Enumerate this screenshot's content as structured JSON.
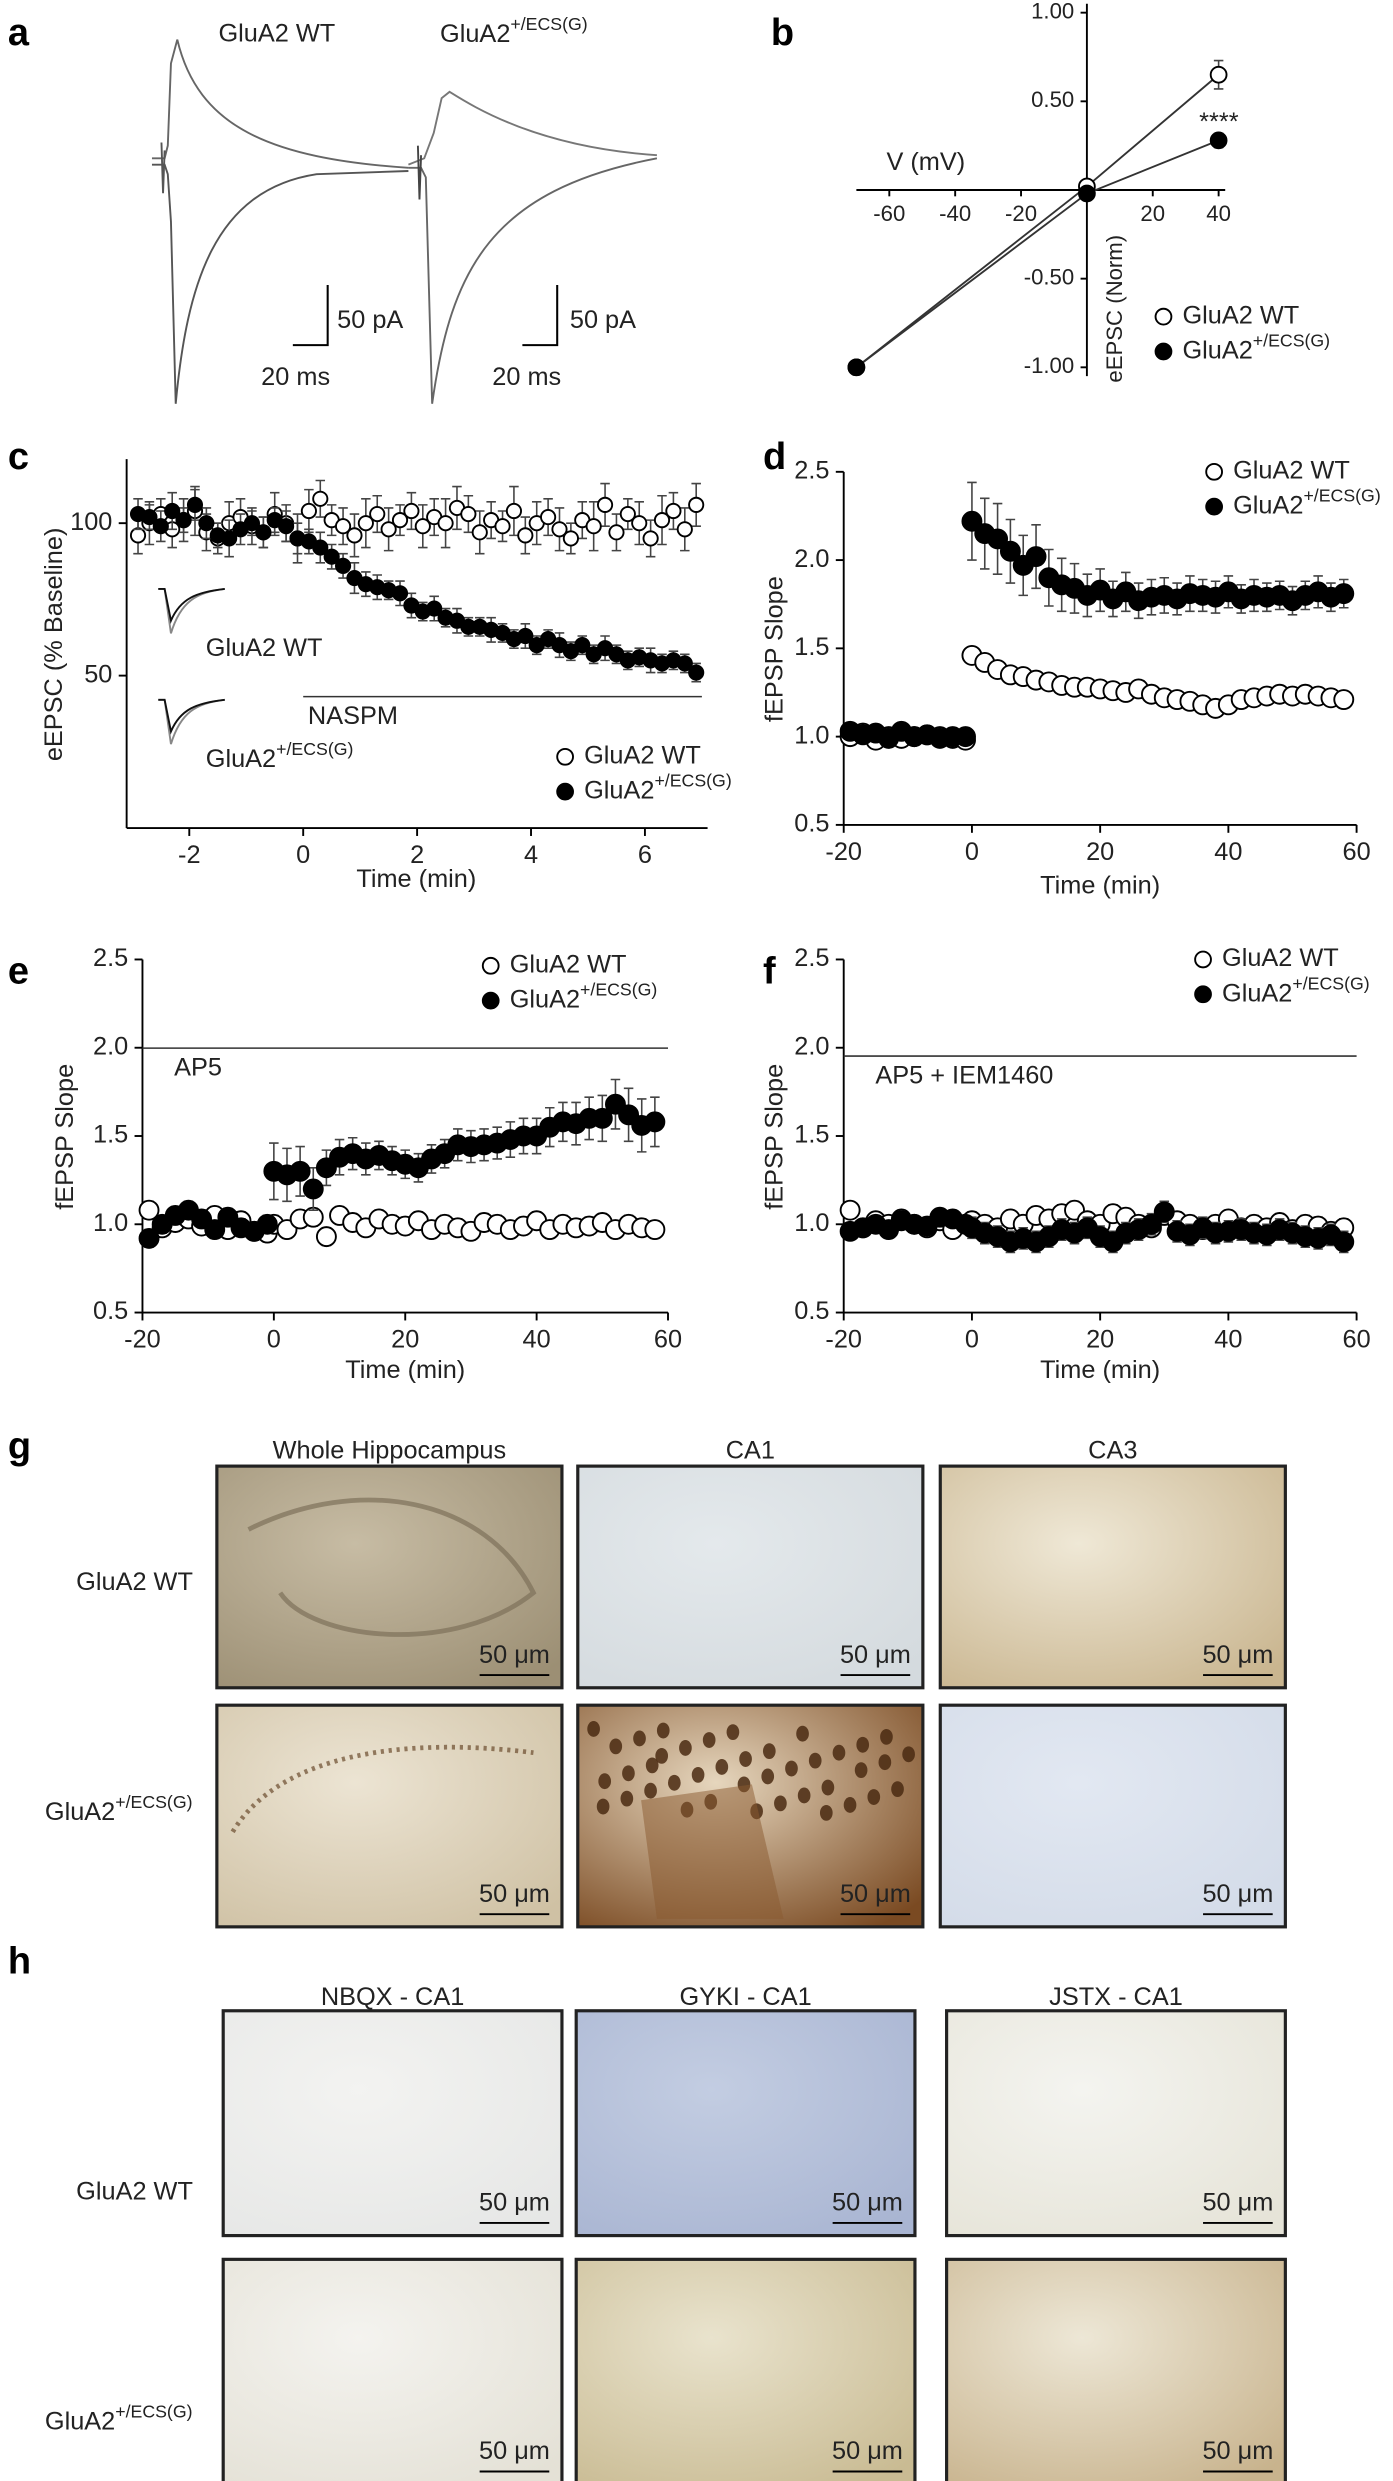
{
  "chart_data": [
    {
      "type": "trace",
      "panel": "a",
      "labels": [
        "GluA2 WT",
        "GluA2+/ECS(G)"
      ],
      "scale_bars": [
        "50 pA",
        "20 ms"
      ]
    },
    {
      "type": "scatter",
      "panel": "b",
      "xlabel": "V (mV)",
      "ylabel": "eEPSC (Norm)",
      "axes_cross": true,
      "x": [
        -70,
        0,
        40
      ],
      "xlim": [
        -70,
        42
      ],
      "ylim": [
        -1.05,
        1.05
      ],
      "xticks": [
        -60,
        -40,
        -20,
        20,
        40
      ],
      "yticks": [
        {
          "value": -1,
          "label": "-1.00"
        },
        {
          "value": -0.5,
          "label": "-0.50"
        },
        {
          "value": 0.5,
          "label": "0.50"
        },
        {
          "value": 1,
          "label": "1.00"
        }
      ],
      "legend": "lower right",
      "annotations": [
        "****"
      ],
      "series": [
        {
          "name": "GluA2 WT",
          "color": "#ffffff",
          "line": true,
          "values": [
            -1,
            0.02,
            0.65
          ],
          "errors": [
            null,
            null,
            0.08
          ]
        },
        {
          "name": "GluA2+/ECS(G)",
          "color": "#000000",
          "line": true,
          "values": [
            -1,
            -0.02,
            0.28
          ],
          "errors": [
            null,
            0.02,
            0.04
          ]
        }
      ]
    },
    {
      "type": "scatter",
      "panel": "c",
      "xlabel": "Time (min)",
      "ylabel": "eEPSC (% Baseline)",
      "xlim": [
        -3.1,
        7.1
      ],
      "ylim": [
        0,
        121
      ],
      "xticks": [
        -2,
        0,
        2,
        4,
        6
      ],
      "yticks": [
        50,
        100
      ],
      "legend": "lower right",
      "annotations": [
        "GluA2 WT",
        "GluA2+/ECS(G)"
      ],
      "drug_bar": {
        "label": "NASPM",
        "x": [
          0,
          7
        ]
      },
      "x": [
        -2.9,
        -2.7,
        -2.5,
        -2.3,
        -2.1,
        -1.9,
        -1.7,
        -1.5,
        -1.3,
        -1.1,
        -0.9,
        -0.7,
        -0.5,
        -0.3,
        -0.1,
        0.1,
        0.3,
        0.5,
        0.7,
        0.9,
        1.1,
        1.3,
        1.5,
        1.7,
        1.9,
        2.1,
        2.3,
        2.5,
        2.7,
        2.9,
        3.1,
        3.3,
        3.5,
        3.7,
        3.9,
        4.1,
        4.3,
        4.5,
        4.7,
        4.9,
        5.1,
        5.3,
        5.5,
        5.7,
        5.9,
        6.1,
        6.3,
        6.5,
        6.7,
        6.9
      ],
      "series": [
        {
          "name": "GluA2 WT",
          "color": "#ffffff",
          "values": [
            96,
            100,
            103,
            98,
            101,
            104,
            97,
            95,
            100,
            102,
            99,
            97,
            103,
            100,
            95,
            104,
            108,
            101,
            99,
            96,
            100,
            103,
            98,
            101,
            104,
            99,
            102,
            100,
            105,
            103,
            97,
            101,
            99,
            104,
            96,
            100,
            102,
            98,
            95,
            101,
            99,
            106,
            97,
            103,
            100,
            95,
            101,
            104,
            98,
            106
          ],
          "errors": [
            6,
            7,
            5,
            6,
            7,
            8,
            6,
            5,
            7,
            6,
            6,
            5,
            7,
            6,
            8,
            7,
            6,
            5,
            6,
            7,
            8,
            6,
            7,
            5,
            6,
            7,
            6,
            8,
            7,
            6,
            7,
            6,
            5,
            8,
            6,
            7,
            6,
            7,
            5,
            6,
            8,
            7,
            6,
            5,
            7,
            6,
            8,
            6,
            7,
            7
          ]
        },
        {
          "name": "GluA2+/ECS(G)",
          "color": "#000000",
          "values": [
            103,
            102,
            99,
            104,
            101,
            106,
            100,
            96,
            95,
            98,
            100,
            97,
            101,
            99,
            95,
            94,
            92,
            89,
            86,
            82,
            80,
            79,
            78,
            77,
            73,
            71,
            72,
            69,
            68,
            66,
            66,
            65,
            64,
            62,
            63,
            60,
            62,
            60,
            58,
            60,
            57,
            59,
            57,
            55,
            56,
            55,
            54,
            55,
            54,
            51
          ],
          "errors": [
            5,
            4,
            5,
            6,
            4,
            5,
            5,
            4,
            6,
            5,
            4,
            5,
            4,
            5,
            5,
            4,
            5,
            4,
            4,
            5,
            4,
            4,
            3,
            4,
            4,
            3,
            4,
            3,
            4,
            3,
            3,
            4,
            3,
            3,
            4,
            3,
            3,
            4,
            3,
            3,
            3,
            4,
            3,
            3,
            3,
            4,
            3,
            3,
            3,
            3
          ]
        }
      ]
    },
    {
      "type": "scatter",
      "panel": "d",
      "xlabel": "Time (min)",
      "ylabel": "fEPSP Slope",
      "xlim": [
        -20,
        60
      ],
      "ylim": [
        0.5,
        2.5
      ],
      "xticks": [
        -20,
        0,
        20,
        40,
        60
      ],
      "yticks": [
        0.5,
        {
          "value": 1,
          "label": "1.0"
        },
        1.5,
        {
          "value": 2,
          "label": "2.0"
        },
        2.5
      ],
      "legend": "upper right",
      "x": [
        -19,
        -17,
        -15,
        -13,
        -11,
        -9,
        -7,
        -5,
        -3,
        -1,
        0,
        2,
        4,
        6,
        8,
        10,
        12,
        14,
        16,
        18,
        20,
        22,
        24,
        26,
        28,
        30,
        32,
        34,
        36,
        38,
        40,
        42,
        44,
        46,
        48,
        50,
        52,
        54,
        56,
        58
      ],
      "series": [
        {
          "name": "GluA2 WT",
          "color": "#ffffff",
          "values": [
            1.0,
            1.02,
            0.98,
            1.0,
            0.99,
            1.0,
            1.01,
            1.0,
            0.99,
            0.98,
            1.46,
            1.42,
            1.38,
            1.35,
            1.34,
            1.32,
            1.31,
            1.29,
            1.28,
            1.28,
            1.27,
            1.26,
            1.25,
            1.27,
            1.24,
            1.22,
            1.21,
            1.2,
            1.18,
            1.16,
            1.18,
            1.21,
            1.22,
            1.23,
            1.24,
            1.23,
            1.24,
            1.23,
            1.22,
            1.21
          ],
          "errors": [
            0.02,
            0.02,
            0.02,
            0.02,
            0.02,
            0.02,
            0.02,
            0.02,
            0.02,
            0.02,
            0.03,
            0.03,
            0.03,
            0.03,
            0.03,
            0.03,
            0.03,
            0.03,
            0.03,
            0.03,
            0.03,
            0.03,
            0.03,
            0.03,
            0.03,
            0.03,
            0.03,
            0.03,
            0.03,
            0.03,
            0.03,
            0.03,
            0.03,
            0.03,
            0.03,
            0.03,
            0.03,
            0.03,
            0.03,
            0.03
          ]
        },
        {
          "name": "GluA2+/ECS(G)",
          "color": "#000000",
          "values": [
            1.03,
            1.01,
            1.02,
            0.99,
            1.03,
            1.0,
            1.01,
            0.99,
            1.0,
            1.0,
            2.22,
            2.15,
            2.12,
            2.05,
            1.97,
            2.02,
            1.9,
            1.86,
            1.84,
            1.8,
            1.83,
            1.78,
            1.82,
            1.77,
            1.79,
            1.8,
            1.78,
            1.81,
            1.8,
            1.79,
            1.82,
            1.78,
            1.8,
            1.79,
            1.8,
            1.77,
            1.8,
            1.82,
            1.79,
            1.81
          ],
          "errors": [
            0.02,
            0.02,
            0.02,
            0.02,
            0.02,
            0.02,
            0.02,
            0.02,
            0.02,
            0.02,
            0.22,
            0.2,
            0.2,
            0.18,
            0.17,
            0.18,
            0.16,
            0.15,
            0.14,
            0.12,
            0.12,
            0.1,
            0.11,
            0.1,
            0.1,
            0.1,
            0.09,
            0.1,
            0.09,
            0.09,
            0.09,
            0.08,
            0.09,
            0.08,
            0.08,
            0.08,
            0.08,
            0.09,
            0.08,
            0.08
          ]
        }
      ]
    },
    {
      "type": "scatter",
      "panel": "e",
      "xlabel": "Time (min)",
      "ylabel": "fEPSP Slope",
      "xlim": [
        -20,
        60
      ],
      "ylim": [
        0.5,
        2.5
      ],
      "xticks": [
        -20,
        0,
        20,
        40,
        60
      ],
      "yticks": [
        0.5,
        {
          "value": 1,
          "label": "1.0"
        },
        1.5,
        {
          "value": 2,
          "label": "2.0"
        },
        2.5
      ],
      "legend": "upper right",
      "drug_bar": {
        "label": "AP5",
        "x": [
          -20,
          60
        ]
      },
      "x": [
        -19,
        -17,
        -15,
        -13,
        -11,
        -9,
        -7,
        -5,
        -3,
        -1,
        0,
        2,
        4,
        6,
        8,
        10,
        12,
        14,
        16,
        18,
        20,
        22,
        24,
        26,
        28,
        30,
        32,
        34,
        36,
        38,
        40,
        42,
        44,
        46,
        48,
        50,
        52,
        54,
        56,
        58
      ],
      "series": [
        {
          "name": "GluA2 WT",
          "color": "#ffffff",
          "values": [
            1.08,
            0.98,
            1.01,
            1.03,
            0.99,
            1.05,
            0.97,
            1.02,
            0.96,
            0.95,
            1.0,
            0.97,
            1.03,
            1.04,
            0.93,
            1.05,
            1.01,
            0.98,
            1.03,
            1.0,
            0.99,
            1.02,
            0.97,
            1.0,
            0.98,
            0.96,
            1.01,
            1.0,
            0.97,
            0.99,
            1.02,
            0.97,
            1.0,
            0.98,
            0.99,
            1.01,
            0.97,
            1.0,
            0.98,
            0.97
          ],
          "errors": [
            0.05,
            0.05,
            0.05,
            0.05,
            0.05,
            0.05,
            0.05,
            0.05,
            0.05,
            0.05,
            0.05,
            0.05,
            0.05,
            0.05,
            0.05,
            0.05,
            0.05,
            0.05,
            0.05,
            0.05,
            0.05,
            0.05,
            0.05,
            0.05,
            0.05,
            0.05,
            0.05,
            0.05,
            0.05,
            0.05,
            0.05,
            0.05,
            0.05,
            0.05,
            0.05,
            0.05,
            0.05,
            0.05,
            0.05,
            0.05
          ]
        },
        {
          "name": "GluA2+/ECS(G)",
          "color": "#000000",
          "values": [
            0.92,
            1.0,
            1.05,
            1.08,
            1.03,
            0.97,
            1.04,
            0.98,
            0.96,
            1.0,
            1.3,
            1.28,
            1.3,
            1.2,
            1.32,
            1.38,
            1.4,
            1.37,
            1.39,
            1.36,
            1.34,
            1.32,
            1.37,
            1.4,
            1.45,
            1.44,
            1.45,
            1.46,
            1.48,
            1.5,
            1.5,
            1.55,
            1.58,
            1.57,
            1.6,
            1.6,
            1.68,
            1.62,
            1.56,
            1.58
          ],
          "errors": [
            0.05,
            0.05,
            0.05,
            0.05,
            0.05,
            0.05,
            0.05,
            0.05,
            0.05,
            0.05,
            0.16,
            0.15,
            0.14,
            0.12,
            0.1,
            0.1,
            0.09,
            0.09,
            0.08,
            0.08,
            0.08,
            0.08,
            0.08,
            0.08,
            0.09,
            0.09,
            0.09,
            0.09,
            0.1,
            0.1,
            0.1,
            0.11,
            0.11,
            0.12,
            0.12,
            0.13,
            0.14,
            0.15,
            0.15,
            0.14
          ]
        }
      ]
    },
    {
      "type": "scatter",
      "panel": "f",
      "xlabel": "Time (min)",
      "ylabel": "fEPSP Slope",
      "xlim": [
        -20,
        60
      ],
      "ylim": [
        0.5,
        2.5
      ],
      "xticks": [
        -20,
        0,
        20,
        40,
        60
      ],
      "yticks": [
        0.5,
        {
          "value": 1,
          "label": "1.0"
        },
        1.5,
        {
          "value": 2,
          "label": "2.0"
        },
        2.5
      ],
      "legend": "upper right",
      "drug_bar": {
        "label": "AP5 + IEM1460",
        "x": [
          -20,
          60
        ]
      },
      "x": [
        -19,
        -17,
        -15,
        -13,
        -11,
        -9,
        -7,
        -5,
        -3,
        -1,
        0,
        2,
        4,
        6,
        8,
        10,
        12,
        14,
        16,
        18,
        20,
        22,
        24,
        26,
        28,
        30,
        32,
        34,
        36,
        38,
        40,
        42,
        44,
        46,
        48,
        50,
        52,
        54,
        56,
        58
      ],
      "series": [
        {
          "name": "GluA2 WT",
          "color": "#ffffff",
          "values": [
            1.08,
            0.98,
            1.02,
            1.0,
            1.03,
            1.0,
            0.98,
            1.02,
            0.97,
            1.0,
            1.02,
            1.0,
            0.98,
            1.03,
            1.0,
            1.05,
            1.03,
            1.06,
            1.08,
            1.02,
            1.0,
            1.06,
            1.04,
            1.0,
            0.98,
            1.05,
            1.02,
            1.0,
            0.97,
            1.0,
            1.03,
            0.98,
            1.0,
            0.98,
            1.01,
            0.97,
            1.0,
            0.99,
            0.96,
            0.98
          ],
          "errors": [
            0.04,
            0.04,
            0.04,
            0.04,
            0.04,
            0.04,
            0.04,
            0.04,
            0.04,
            0.04,
            0.05,
            0.05,
            0.05,
            0.05,
            0.05,
            0.05,
            0.05,
            0.05,
            0.05,
            0.05,
            0.05,
            0.05,
            0.05,
            0.05,
            0.05,
            0.05,
            0.05,
            0.05,
            0.05,
            0.05,
            0.05,
            0.05,
            0.05,
            0.05,
            0.05,
            0.05,
            0.05,
            0.05,
            0.05,
            0.05
          ]
        },
        {
          "name": "GluA2+/ECS(G)",
          "color": "#000000",
          "values": [
            0.96,
            0.98,
            1.0,
            0.97,
            1.02,
            1.0,
            0.99,
            1.04,
            1.03,
            1.0,
            0.98,
            0.95,
            0.93,
            0.9,
            0.92,
            0.9,
            0.93,
            0.97,
            0.95,
            0.98,
            0.93,
            0.9,
            0.95,
            0.97,
            1.0,
            1.07,
            0.96,
            0.94,
            0.98,
            0.95,
            0.96,
            0.97,
            0.95,
            0.94,
            0.97,
            0.95,
            0.93,
            0.92,
            0.94,
            0.9
          ],
          "errors": [
            0.04,
            0.04,
            0.04,
            0.04,
            0.04,
            0.04,
            0.04,
            0.04,
            0.04,
            0.04,
            0.06,
            0.06,
            0.06,
            0.06,
            0.06,
            0.06,
            0.06,
            0.06,
            0.06,
            0.06,
            0.06,
            0.06,
            0.06,
            0.06,
            0.06,
            0.06,
            0.06,
            0.06,
            0.06,
            0.06,
            0.06,
            0.06,
            0.06,
            0.06,
            0.06,
            0.06,
            0.06,
            0.06,
            0.06,
            0.06
          ]
        }
      ]
    }
  ],
  "micrographs": [
    {
      "panel": "g",
      "columns": [
        "Whole Hippocampus",
        "CA1",
        "CA3"
      ],
      "rows": [
        "GluA2 WT",
        "GluA2+/ECS(G)"
      ],
      "scale_bar": "50 μm"
    },
    {
      "panel": "h",
      "columns": [
        "NBQX - CA1",
        "GYKI - CA1",
        "JSTX - CA1"
      ],
      "rows": [
        "GluA2 WT",
        "GluA2+/ECS(G)"
      ],
      "scale_bar": "50 μm"
    }
  ]
}
